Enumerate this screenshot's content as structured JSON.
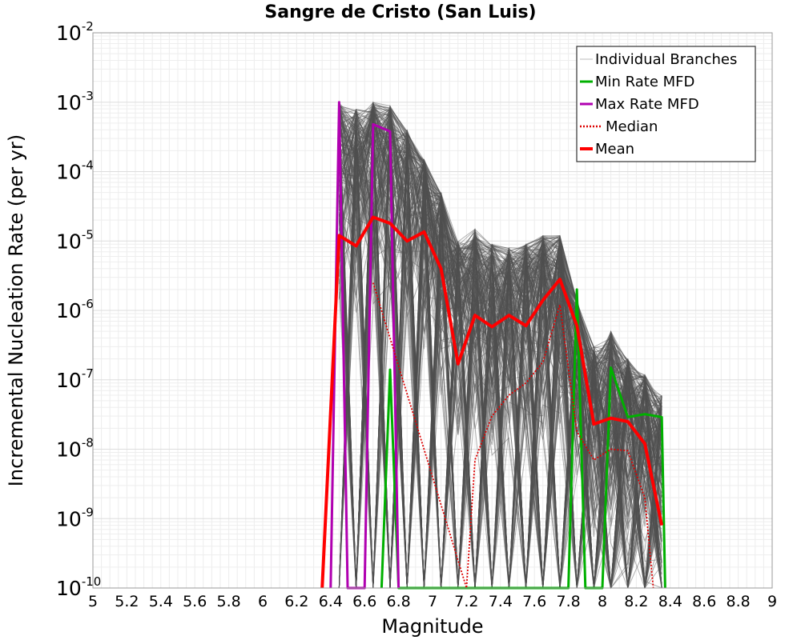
{
  "chart_data": {
    "type": "line",
    "title": "Sangre de Cristo (San Luis)",
    "xlabel": "Magnitude",
    "ylabel": "Incremental Nucleation Rate (per yr)",
    "x_scale": "linear",
    "y_scale": "log",
    "xlim": [
      5,
      9
    ],
    "ylim": [
      1e-10,
      0.01
    ],
    "x_ticks": [
      "5",
      "5.2",
      "5.4",
      "5.6",
      "5.8",
      "6",
      "6.2",
      "6.4",
      "6.6",
      "6.8",
      "7",
      "7.2",
      "7.4",
      "7.6",
      "7.8",
      "8",
      "8.2",
      "8.4",
      "8.6",
      "8.8",
      "9"
    ],
    "y_ticks": [
      {
        "base": "10",
        "exp": "-10",
        "value": 1e-10
      },
      {
        "base": "10",
        "exp": "-9",
        "value": 1e-09
      },
      {
        "base": "10",
        "exp": "-8",
        "value": 1e-08
      },
      {
        "base": "10",
        "exp": "-7",
        "value": 1e-07
      },
      {
        "base": "10",
        "exp": "-6",
        "value": 1e-06
      },
      {
        "base": "10",
        "exp": "-5",
        "value": 1e-05
      },
      {
        "base": "10",
        "exp": "-4",
        "value": 0.0001
      },
      {
        "base": "10",
        "exp": "-3",
        "value": 0.001
      },
      {
        "base": "10",
        "exp": "-2",
        "value": 0.01
      }
    ],
    "grid": true,
    "legend_position": "top-right",
    "legend": [
      {
        "label": "Individual Branches",
        "color": "#bbbbbb",
        "style": "thin"
      },
      {
        "label": "Min Rate MFD",
        "color": "#00b000",
        "style": "solid"
      },
      {
        "label": "Max Rate MFD",
        "color": "#b000b0",
        "style": "solid"
      },
      {
        "label": "Median",
        "color": "#dd0000",
        "style": "dotted"
      },
      {
        "label": "Mean",
        "color": "#ff0000",
        "style": "thick"
      }
    ],
    "series": [
      {
        "name": "Mean",
        "color": "#ff0000",
        "x": [
          6.35,
          6.45,
          6.55,
          6.65,
          6.75,
          6.85,
          6.95,
          7.05,
          7.15,
          7.25,
          7.35,
          7.45,
          7.55,
          7.65,
          7.75,
          7.85,
          7.95,
          8.05,
          8.15,
          8.25,
          8.35
        ],
        "y": [
          1e-10,
          1.2e-05,
          8.5e-06,
          2.2e-05,
          1.8e-05,
          1e-05,
          1.35e-05,
          4e-06,
          1.7e-07,
          8.5e-07,
          5.8e-07,
          8.5e-07,
          6e-07,
          1.4e-06,
          2.8e-06,
          6e-07,
          2.3e-08,
          2.8e-08,
          2.5e-08,
          1.2e-08,
          8e-10
        ]
      },
      {
        "name": "Median",
        "color": "#dd0000",
        "x": [
          6.65,
          7.2,
          7.25,
          7.35,
          7.45,
          7.55,
          7.65,
          7.75,
          7.85,
          7.95,
          8.05,
          8.15,
          8.25,
          8.3
        ],
        "y": [
          2.5e-06,
          1e-10,
          7e-09,
          3e-08,
          6e-08,
          9e-08,
          1.8e-07,
          1.2e-06,
          1.8e-08,
          7e-09,
          1e-08,
          9.5e-09,
          2e-09,
          1e-10
        ]
      },
      {
        "name": "Min Rate MFD",
        "color": "#00b000",
        "x": [
          6.7,
          6.75,
          6.8,
          7.8,
          7.85,
          7.9,
          8.0,
          8.05,
          8.15,
          8.25,
          8.35,
          8.37
        ],
        "y": [
          1e-10,
          1.4e-07,
          1e-10,
          1e-10,
          2e-06,
          1e-10,
          1e-10,
          1.5e-07,
          2.9e-08,
          3.2e-08,
          2.9e-08,
          1e-10
        ]
      },
      {
        "name": "Max Rate MFD",
        "color": "#b000b0",
        "x": [
          6.4,
          6.45,
          6.5,
          6.6,
          6.65,
          6.75,
          6.8
        ],
        "y": [
          1e-10,
          0.001,
          1e-10,
          1e-10,
          0.00048,
          0.00038,
          1e-10
        ]
      }
    ],
    "individual_branches_envelope": {
      "x": [
        6.45,
        6.55,
        6.65,
        6.75,
        6.85,
        6.95,
        7.05,
        7.15,
        7.25,
        7.35,
        7.45,
        7.55,
        7.65,
        7.75,
        7.85,
        7.95,
        8.05,
        8.15,
        8.25,
        8.35
      ],
      "upper": [
        0.001,
        0.0008,
        0.001,
        0.0009,
        0.0004,
        0.00015,
        5e-05,
        1e-05,
        1.5e-05,
        9e-06,
        8e-06,
        9e-06,
        1.2e-05,
        1.2e-05,
        1.5e-06,
        3e-07,
        5e-07,
        2e-07,
        1.2e-07,
        6e-08
      ],
      "lower": [
        1e-10,
        1e-10,
        1e-10,
        1e-10,
        1e-10,
        1e-10,
        1e-10,
        1e-10,
        1e-10,
        1e-10,
        1e-10,
        1e-10,
        1e-10,
        1e-10,
        1e-10,
        1e-10,
        1e-10,
        1e-10,
        1e-10,
        1e-10
      ]
    }
  }
}
